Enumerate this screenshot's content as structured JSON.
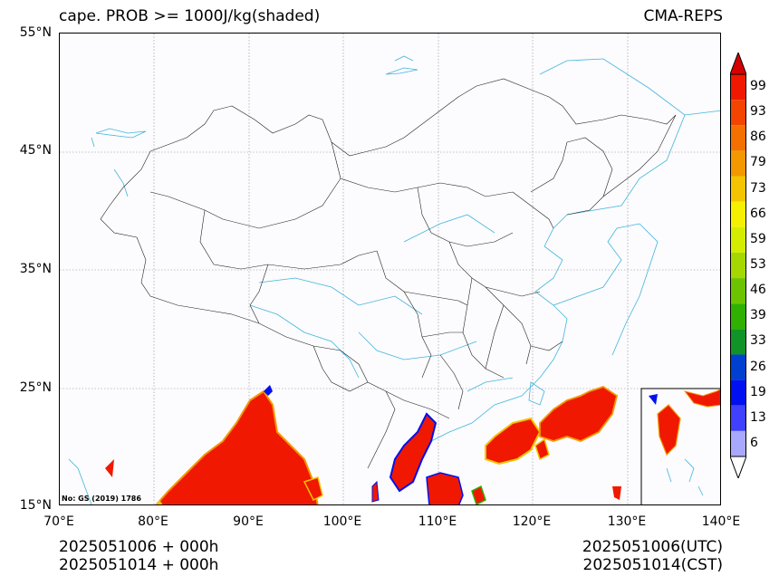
{
  "title": {
    "left": "cape. PROB >= 1000J/kg(shaded)",
    "right": "CMA-REPS"
  },
  "map": {
    "lat_labels": [
      "55°N",
      "45°N",
      "35°N",
      "25°N",
      "15°N"
    ],
    "lon_labels": [
      "70°E",
      "80°E",
      "90°E",
      "100°E",
      "110°E",
      "120°E",
      "130°E",
      "140°E"
    ],
    "lat_range": [
      15,
      55
    ],
    "lon_range": [
      70,
      140
    ],
    "grid": true,
    "license": "No: GS (2019) 1786"
  },
  "colorbar": {
    "labels": [
      "99",
      "93",
      "86",
      "79",
      "73",
      "66",
      "59",
      "53",
      "46",
      "39",
      "33",
      "26",
      "19",
      "13",
      "6"
    ],
    "colors": [
      "#f01800",
      "#f44400",
      "#f47000",
      "#f49800",
      "#f4c400",
      "#f4f000",
      "#d4ec00",
      "#a4d800",
      "#6cc400",
      "#30b000",
      "#109428",
      "#0040d0",
      "#0010f0",
      "#4040ff",
      "#a8a8ff"
    ],
    "top_arrow_color": "#d40000",
    "bottom_arrow_color": "#ffffff"
  },
  "footer": {
    "left_line1": "2025051006  +  000h",
    "left_line2": "2025051014  +  000h",
    "right_line1": "2025051006(UTC)",
    "right_line2": "2025051014(CST)"
  }
}
